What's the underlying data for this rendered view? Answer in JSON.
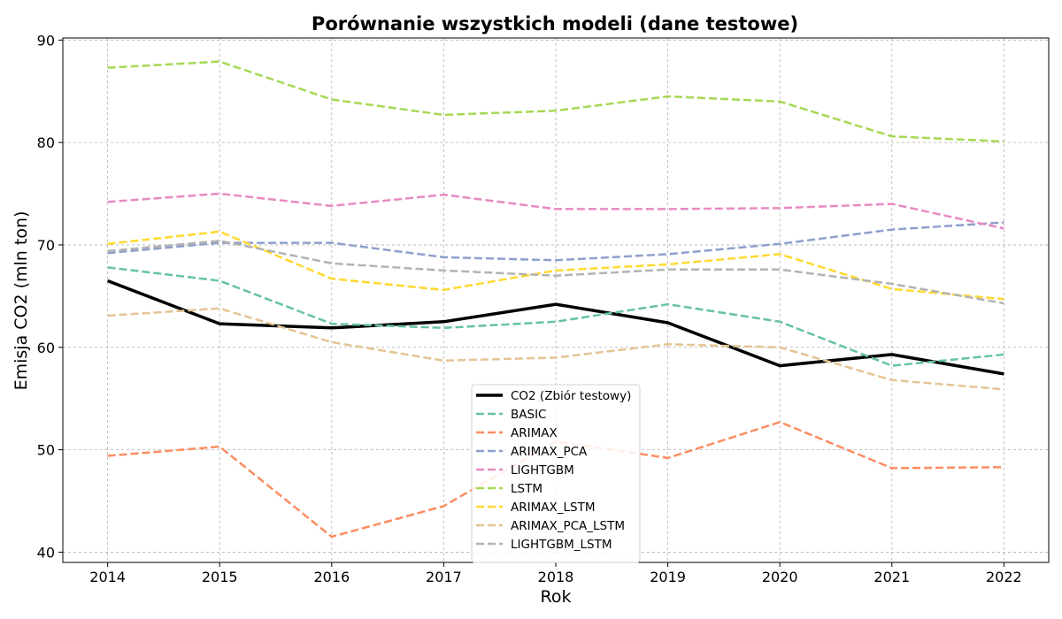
{
  "chart_data": {
    "type": "line",
    "title": "Porównanie wszystkich modeli (dane testowe)",
    "xlabel": "Rok",
    "ylabel": "Emisja CO2 (mln ton)",
    "x": [
      2014,
      2015,
      2016,
      2017,
      2018,
      2019,
      2020,
      2021,
      2022
    ],
    "xticks": [
      "2014",
      "2015",
      "2016",
      "2017",
      "2018",
      "2019",
      "2020",
      "2021",
      "2022"
    ],
    "yticks": [
      "40",
      "50",
      "60",
      "70",
      "80",
      "90"
    ],
    "xlim": [
      2013.6,
      2022.4
    ],
    "ylim": [
      39.0,
      90.2
    ],
    "grid": true,
    "legend_position": "bottom-center",
    "series": [
      {
        "name": "CO2 (Zbiór testowy)",
        "color": "#000000",
        "style": "solid",
        "values": [
          66.5,
          62.3,
          61.9,
          62.5,
          64.2,
          62.4,
          58.2,
          59.3,
          57.4
        ]
      },
      {
        "name": "BASIC",
        "color": "#66c2a5",
        "style": "dashed",
        "values": [
          67.8,
          66.5,
          62.3,
          61.9,
          62.5,
          64.2,
          62.5,
          58.2,
          59.3
        ]
      },
      {
        "name": "ARIMAX",
        "color": "#fc8d62",
        "style": "dashed",
        "values": [
          49.4,
          50.3,
          41.5,
          44.5,
          50.8,
          49.2,
          52.7,
          48.2,
          48.3
        ]
      },
      {
        "name": "ARIMAX_PCA",
        "color": "#8da0cb",
        "style": "dashed",
        "values": [
          69.2,
          70.2,
          70.2,
          68.8,
          68.5,
          69.1,
          70.1,
          71.5,
          72.2
        ]
      },
      {
        "name": "LIGHTGBM",
        "color": "#e78ac3",
        "style": "dashed",
        "values": [
          74.2,
          75.0,
          73.8,
          74.9,
          73.5,
          73.5,
          73.6,
          74.0,
          71.6
        ]
      },
      {
        "name": "LSTM",
        "color": "#a6d854",
        "style": "dashed",
        "values": [
          87.3,
          87.9,
          84.2,
          82.7,
          83.1,
          84.5,
          84.0,
          80.6,
          80.1
        ]
      },
      {
        "name": "ARIMAX_LSTM",
        "color": "#ffd92f",
        "style": "dashed",
        "values": [
          70.1,
          71.3,
          66.7,
          65.6,
          67.5,
          68.1,
          69.1,
          65.7,
          64.7
        ]
      },
      {
        "name": "ARIMAX_PCA_LSTM",
        "color": "#e5c494",
        "style": "dashed",
        "values": [
          63.1,
          63.8,
          60.5,
          58.7,
          59.0,
          60.3,
          60.0,
          56.8,
          55.9
        ]
      },
      {
        "name": "LIGHTGBM_LSTM",
        "color": "#b3b3b3",
        "style": "dashed",
        "values": [
          69.4,
          70.4,
          68.2,
          67.5,
          67.0,
          67.6,
          67.6,
          66.2,
          64.3
        ]
      }
    ]
  }
}
